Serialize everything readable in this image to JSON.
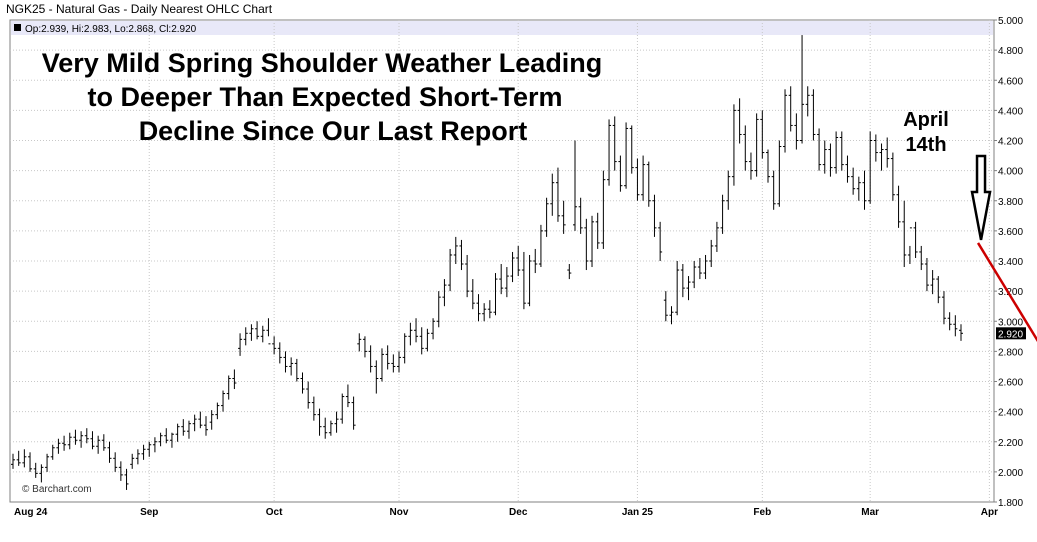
{
  "header": {
    "title": "NGK25 - Natural Gas - Daily Nearest OHLC Chart",
    "ohlc_text": "Op:2.939, Hi:2.983, Lo:2.868, Cl:2.920"
  },
  "annotation": {
    "lines": [
      "Very Mild Spring Shoulder Weather Leading",
      "to Deeper Than Expected Short-Term",
      "Decline Since Our Last Report"
    ],
    "arrow_label_lines": [
      "April",
      "14th"
    ]
  },
  "watermark": "© Barchart.com",
  "last_price_label": "2.920",
  "colors": {
    "bars": "#000000",
    "trendline": "#cc0000",
    "legend_band": "#e8e8f8",
    "grid": "#c8c8c8"
  },
  "chart_data": {
    "type": "ohlc",
    "title": "NGK25 - Natural Gas - Daily Nearest OHLC Chart",
    "ylim": [
      1.8,
      5.0
    ],
    "yticks": [
      "1.800",
      "2.000",
      "2.200",
      "2.400",
      "2.600",
      "2.800",
      "3.000",
      "3.200",
      "3.400",
      "3.600",
      "3.800",
      "4.000",
      "4.200",
      "4.400",
      "4.600",
      "4.800",
      "5.000"
    ],
    "month_labels": [
      "Aug 24",
      "Sep",
      "Oct",
      "Nov",
      "Dec",
      "Jan 25",
      "Feb",
      "Mar",
      "Apr"
    ],
    "month_label_bar_index": [
      0,
      24,
      46,
      68,
      89,
      110,
      132,
      151,
      172
    ],
    "grid": true,
    "last_close": 2.92,
    "bars": [
      [
        2.05,
        2.12,
        2.02,
        2.08
      ],
      [
        2.08,
        2.14,
        2.04,
        2.06
      ],
      [
        2.06,
        2.15,
        2.03,
        2.1
      ],
      [
        2.1,
        2.13,
        2.0,
        2.02
      ],
      [
        2.02,
        2.06,
        1.96,
        1.99
      ],
      [
        1.99,
        2.05,
        1.93,
        2.03
      ],
      [
        2.03,
        2.12,
        2.0,
        2.1
      ],
      [
        2.1,
        2.18,
        2.08,
        2.16
      ],
      [
        2.16,
        2.22,
        2.12,
        2.19
      ],
      [
        2.19,
        2.24,
        2.14,
        2.18
      ],
      [
        2.18,
        2.26,
        2.15,
        2.23
      ],
      [
        2.23,
        2.28,
        2.18,
        2.21
      ],
      [
        2.21,
        2.27,
        2.16,
        2.24
      ],
      [
        2.24,
        2.29,
        2.19,
        2.22
      ],
      [
        2.22,
        2.27,
        2.15,
        2.17
      ],
      [
        2.17,
        2.24,
        2.12,
        2.21
      ],
      [
        2.21,
        2.25,
        2.14,
        2.16
      ],
      [
        2.16,
        2.2,
        2.06,
        2.09
      ],
      [
        2.09,
        2.13,
        2.0,
        2.03
      ],
      [
        2.03,
        2.07,
        1.94,
        1.98
      ],
      [
        1.98,
        2.02,
        1.88,
        1.92
      ],
      [
        2.05,
        2.12,
        2.02,
        2.09
      ],
      [
        2.09,
        2.15,
        2.05,
        2.12
      ],
      [
        2.12,
        2.18,
        2.08,
        2.15
      ],
      [
        2.15,
        2.2,
        2.1,
        2.18
      ],
      [
        2.18,
        2.23,
        2.13,
        2.2
      ],
      [
        2.2,
        2.26,
        2.17,
        2.24
      ],
      [
        2.24,
        2.29,
        2.19,
        2.21
      ],
      [
        2.21,
        2.26,
        2.16,
        2.25
      ],
      [
        2.25,
        2.32,
        2.2,
        2.3
      ],
      [
        2.3,
        2.35,
        2.24,
        2.27
      ],
      [
        2.27,
        2.34,
        2.22,
        2.32
      ],
      [
        2.32,
        2.38,
        2.27,
        2.35
      ],
      [
        2.35,
        2.4,
        2.29,
        2.31
      ],
      [
        2.31,
        2.37,
        2.24,
        2.28
      ],
      [
        2.33,
        2.41,
        2.28,
        2.38
      ],
      [
        2.38,
        2.46,
        2.35,
        2.44
      ],
      [
        2.44,
        2.54,
        2.4,
        2.52
      ],
      [
        2.52,
        2.64,
        2.48,
        2.62
      ],
      [
        2.62,
        2.68,
        2.55,
        2.59
      ],
      [
        2.82,
        2.92,
        2.77,
        2.88
      ],
      [
        2.88,
        2.96,
        2.84,
        2.92
      ],
      [
        2.92,
        2.98,
        2.87,
        2.95
      ],
      [
        2.95,
        3.0,
        2.88,
        2.9
      ],
      [
        2.9,
        2.97,
        2.86,
        2.94
      ],
      [
        2.94,
        3.02,
        2.9,
        2.85
      ],
      [
        2.85,
        2.9,
        2.78,
        2.82
      ],
      [
        2.82,
        2.86,
        2.72,
        2.76
      ],
      [
        2.76,
        2.8,
        2.66,
        2.7
      ],
      [
        2.7,
        2.76,
        2.64,
        2.72
      ],
      [
        2.72,
        2.75,
        2.6,
        2.62
      ],
      [
        2.62,
        2.66,
        2.52,
        2.55
      ],
      [
        2.55,
        2.6,
        2.42,
        2.46
      ],
      [
        2.46,
        2.5,
        2.34,
        2.38
      ],
      [
        2.38,
        2.42,
        2.24,
        2.3
      ],
      [
        2.3,
        2.36,
        2.22,
        2.26
      ],
      [
        2.26,
        2.34,
        2.24,
        2.32
      ],
      [
        2.32,
        2.4,
        2.26,
        2.35
      ],
      [
        2.35,
        2.52,
        2.32,
        2.5
      ],
      [
        2.5,
        2.58,
        2.43,
        2.46
      ],
      [
        2.46,
        2.5,
        2.28,
        2.31
      ],
      [
        2.85,
        2.92,
        2.8,
        2.88
      ],
      [
        2.88,
        2.9,
        2.76,
        2.8
      ],
      [
        2.8,
        2.84,
        2.66,
        2.7
      ],
      [
        2.7,
        2.74,
        2.52,
        2.62
      ],
      [
        2.62,
        2.82,
        2.6,
        2.78
      ],
      [
        2.78,
        2.84,
        2.68,
        2.72
      ],
      [
        2.72,
        2.78,
        2.66,
        2.7
      ],
      [
        2.7,
        2.8,
        2.66,
        2.76
      ],
      [
        2.76,
        2.92,
        2.72,
        2.9
      ],
      [
        2.9,
        2.99,
        2.84,
        2.94
      ],
      [
        2.94,
        3.02,
        2.86,
        2.9
      ],
      [
        2.9,
        2.96,
        2.78,
        2.82
      ],
      [
        2.82,
        2.95,
        2.8,
        2.92
      ],
      [
        2.92,
        3.02,
        2.88,
        3.0
      ],
      [
        3.0,
        3.2,
        2.96,
        3.16
      ],
      [
        3.16,
        3.28,
        3.1,
        3.24
      ],
      [
        3.24,
        3.48,
        3.2,
        3.44
      ],
      [
        3.44,
        3.56,
        3.38,
        3.5
      ],
      [
        3.5,
        3.54,
        3.34,
        3.38
      ],
      [
        3.38,
        3.44,
        3.16,
        3.2
      ],
      [
        3.2,
        3.28,
        3.08,
        3.12
      ],
      [
        3.12,
        3.18,
        3.0,
        3.05
      ],
      [
        3.05,
        3.12,
        3.0,
        3.08
      ],
      [
        3.08,
        3.14,
        3.02,
        3.06
      ],
      [
        3.06,
        3.32,
        3.04,
        3.28
      ],
      [
        3.28,
        3.38,
        3.18,
        3.22
      ],
      [
        3.22,
        3.36,
        3.16,
        3.3
      ],
      [
        3.3,
        3.46,
        3.26,
        3.42
      ],
      [
        3.42,
        3.5,
        3.3,
        3.34
      ],
      [
        3.34,
        3.46,
        3.08,
        3.12
      ],
      [
        3.12,
        3.44,
        3.1,
        3.4
      ],
      [
        3.4,
        3.48,
        3.32,
        3.38
      ],
      [
        3.38,
        3.64,
        3.36,
        3.6
      ],
      [
        3.6,
        3.82,
        3.56,
        3.78
      ],
      [
        3.78,
        3.98,
        3.7,
        3.92
      ],
      [
        3.92,
        4.02,
        3.66,
        3.7
      ],
      [
        3.7,
        3.8,
        3.58,
        3.64
      ],
      [
        3.34,
        3.38,
        3.28,
        3.32
      ],
      [
        3.64,
        4.2,
        3.6,
        3.76
      ],
      [
        3.76,
        3.82,
        3.58,
        3.62
      ],
      [
        3.62,
        3.68,
        3.34,
        3.4
      ],
      [
        3.4,
        3.7,
        3.36,
        3.66
      ],
      [
        3.66,
        3.72,
        3.48,
        3.52
      ],
      [
        3.52,
        4.0,
        3.48,
        3.94
      ],
      [
        3.94,
        4.34,
        3.9,
        4.3
      ],
      [
        4.3,
        4.36,
        4.0,
        4.06
      ],
      [
        4.06,
        4.1,
        3.86,
        3.9
      ],
      [
        3.9,
        4.32,
        3.88,
        4.28
      ],
      [
        4.28,
        4.3,
        3.98,
        4.02
      ],
      [
        4.02,
        4.08,
        3.8,
        3.84
      ],
      [
        3.84,
        4.1,
        3.8,
        4.04
      ],
      [
        4.04,
        4.06,
        3.76,
        3.8
      ],
      [
        3.8,
        3.84,
        3.56,
        3.62
      ],
      [
        3.62,
        3.66,
        3.4,
        3.46
      ],
      [
        3.14,
        3.2,
        3.0,
        3.04
      ],
      [
        3.04,
        3.1,
        2.98,
        3.06
      ],
      [
        3.06,
        3.4,
        3.04,
        3.34
      ],
      [
        3.34,
        3.38,
        3.16,
        3.22
      ],
      [
        3.22,
        3.3,
        3.14,
        3.26
      ],
      [
        3.26,
        3.4,
        3.22,
        3.36
      ],
      [
        3.36,
        3.42,
        3.28,
        3.32
      ],
      [
        3.32,
        3.44,
        3.28,
        3.4
      ],
      [
        3.4,
        3.54,
        3.36,
        3.5
      ],
      [
        3.5,
        3.66,
        3.46,
        3.62
      ],
      [
        3.62,
        3.84,
        3.58,
        3.8
      ],
      [
        3.8,
        4.0,
        3.74,
        3.96
      ],
      [
        3.96,
        4.44,
        3.9,
        4.4
      ],
      [
        4.4,
        4.48,
        4.18,
        4.24
      ],
      [
        4.24,
        4.3,
        4.0,
        4.06
      ],
      [
        4.06,
        4.12,
        3.94,
        4.0
      ],
      [
        4.0,
        4.38,
        3.96,
        4.34
      ],
      [
        4.34,
        4.4,
        4.08,
        4.12
      ],
      [
        4.12,
        4.14,
        3.92,
        3.96
      ],
      [
        3.96,
        4.0,
        3.74,
        3.78
      ],
      [
        3.78,
        4.2,
        3.76,
        4.16
      ],
      [
        4.16,
        4.54,
        4.12,
        4.5
      ],
      [
        4.5,
        4.56,
        4.26,
        4.3
      ],
      [
        4.3,
        4.38,
        4.14,
        4.2
      ],
      [
        4.2,
        4.9,
        4.18,
        4.44
      ],
      [
        4.44,
        4.56,
        4.36,
        4.5
      ],
      [
        4.5,
        4.54,
        4.2,
        4.24
      ],
      [
        4.24,
        4.28,
        4.0,
        4.04
      ],
      [
        4.04,
        4.2,
        3.98,
        4.14
      ],
      [
        4.14,
        4.18,
        3.96,
        4.02
      ],
      [
        4.02,
        4.26,
        3.98,
        4.22
      ],
      [
        4.22,
        4.26,
        4.0,
        4.04
      ],
      [
        4.04,
        4.1,
        3.92,
        3.96
      ],
      [
        3.96,
        4.02,
        3.84,
        3.88
      ],
      [
        3.88,
        3.96,
        3.8,
        3.92
      ],
      [
        3.92,
        4.0,
        3.74,
        3.8
      ],
      [
        3.8,
        4.26,
        3.78,
        4.2
      ],
      [
        4.2,
        4.24,
        4.06,
        4.12
      ],
      [
        4.12,
        4.18,
        4.0,
        4.14
      ],
      [
        4.14,
        4.22,
        4.02,
        4.08
      ],
      [
        4.08,
        4.12,
        3.8,
        3.84
      ],
      [
        3.84,
        3.9,
        3.62,
        3.66
      ],
      [
        3.66,
        3.8,
        3.36,
        3.44
      ],
      [
        3.44,
        3.5,
        3.38,
        3.62
      ],
      [
        3.62,
        3.66,
        3.42,
        3.46
      ],
      [
        3.46,
        3.5,
        3.34,
        3.38
      ],
      [
        3.38,
        3.42,
        3.2,
        3.24
      ],
      [
        3.24,
        3.34,
        3.18,
        3.28
      ],
      [
        3.28,
        3.3,
        3.12,
        3.16
      ],
      [
        3.16,
        3.2,
        2.98,
        3.02
      ],
      [
        3.02,
        3.06,
        2.94,
        2.98
      ],
      [
        2.98,
        3.04,
        2.9,
        2.95
      ],
      [
        2.94,
        2.98,
        2.87,
        2.92
      ]
    ],
    "trendline": [
      [
        170,
        3.52
      ],
      [
        181,
        2.84
      ]
    ],
    "arrow_target_bar_index": 170
  }
}
